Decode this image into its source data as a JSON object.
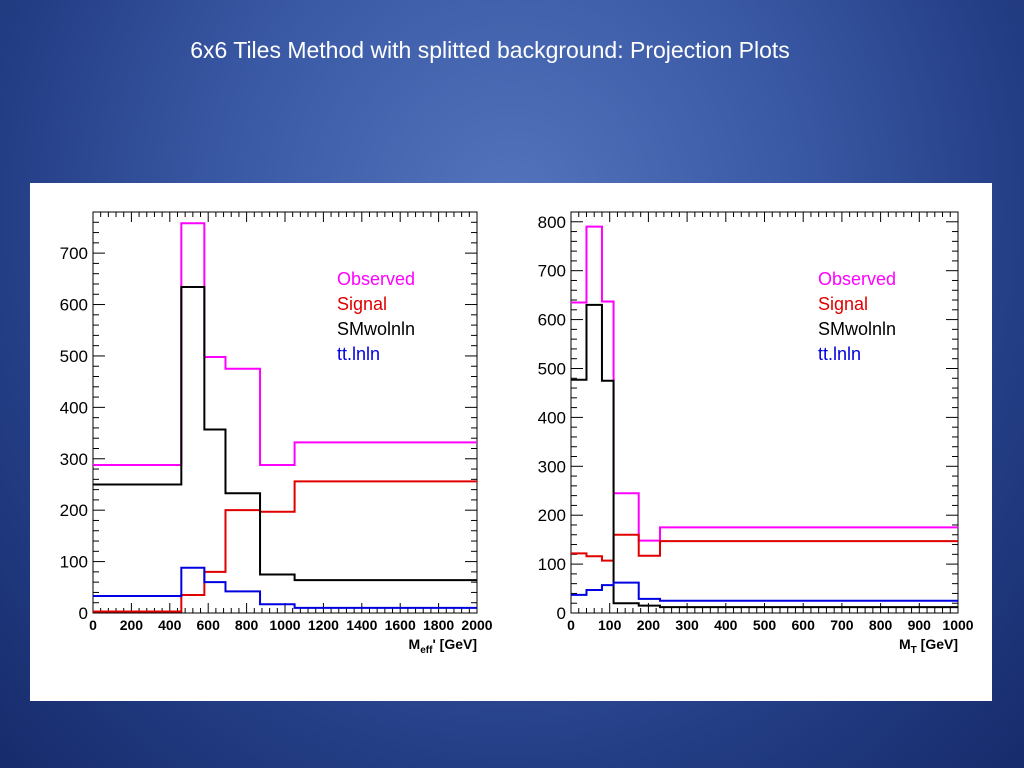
{
  "slide": {
    "title": "6x6 Tiles Method with splitted background: Projection Plots"
  },
  "colors": {
    "Observed": "#ff00ff",
    "Signal": "#e00000",
    "SMwolnln": "#000000",
    "tt.lnln": "#0000e0"
  },
  "chart_data": [
    {
      "type": "line",
      "step": true,
      "xlabel": "M_eff' [GeV]",
      "ylabel": "",
      "xlim": [
        0,
        2000
      ],
      "ylim": [
        0,
        780
      ],
      "x_ticks": [
        0,
        200,
        400,
        600,
        800,
        1000,
        1200,
        1400,
        1600,
        1800,
        2000
      ],
      "y_ticks": [
        0,
        100,
        200,
        300,
        400,
        500,
        600,
        700
      ],
      "legend_placement": "top-right",
      "grid": false,
      "bin_edges": [
        0,
        460,
        580,
        690,
        870,
        1050,
        2000
      ],
      "series": [
        {
          "name": "Observed",
          "values": [
            288,
            758,
            498,
            475,
            288,
            332
          ]
        },
        {
          "name": "Signal",
          "values": [
            3,
            35,
            80,
            200,
            197,
            256
          ]
        },
        {
          "name": "SMwolnln",
          "values": [
            250,
            634,
            357,
            233,
            75,
            64
          ]
        },
        {
          "name": "tt.lnln",
          "values": [
            33,
            88,
            60,
            42,
            17,
            10
          ]
        }
      ]
    },
    {
      "type": "line",
      "step": true,
      "xlabel": "M_T [GeV]",
      "ylabel": "",
      "xlim": [
        0,
        1000
      ],
      "ylim": [
        0,
        820
      ],
      "x_ticks": [
        0,
        100,
        200,
        300,
        400,
        500,
        600,
        700,
        800,
        900,
        1000
      ],
      "y_ticks": [
        0,
        100,
        200,
        300,
        400,
        500,
        600,
        700,
        800
      ],
      "legend_placement": "top-right",
      "grid": false,
      "bin_edges": [
        0,
        40,
        80,
        110,
        175,
        230,
        1000
      ],
      "series": [
        {
          "name": "Observed",
          "values": [
            635,
            790,
            637,
            245,
            148,
            175
          ]
        },
        {
          "name": "Signal",
          "values": [
            122,
            116,
            107,
            160,
            117,
            147
          ]
        },
        {
          "name": "SMwolnln",
          "values": [
            477,
            630,
            475,
            20,
            15,
            12
          ]
        },
        {
          "name": "tt.lnln",
          "values": [
            37,
            47,
            57,
            62,
            29,
            25
          ]
        }
      ]
    }
  ]
}
